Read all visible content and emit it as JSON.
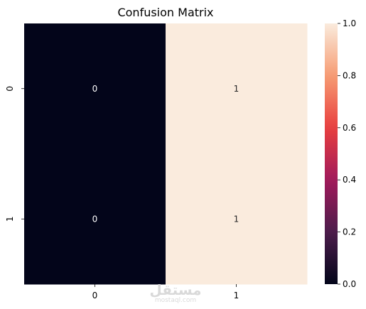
{
  "chart_data": {
    "type": "heatmap",
    "title": "Confusion Matrix",
    "xlabel": "",
    "ylabel": "",
    "x_categories": [
      "0",
      "1"
    ],
    "y_categories": [
      "0",
      "1"
    ],
    "values": [
      [
        0,
        1
      ],
      [
        0,
        1
      ]
    ],
    "annotations": [
      [
        "0",
        "1"
      ],
      [
        "0",
        "1"
      ]
    ],
    "vmin": 0,
    "vmax": 1,
    "colorbar_ticks": [
      "0.0",
      "0.2",
      "0.4",
      "0.6",
      "0.8",
      "1.0"
    ],
    "colormap": "rocket",
    "colormap_stops": [
      "#03051a",
      "#4c1d4b",
      "#a11a5b",
      "#e83f3f",
      "#f69c73",
      "#faebdd"
    ],
    "annotation_colors": {
      "dark_cell": "#ffffff",
      "light_cell": "#262626"
    }
  },
  "watermark": {
    "text": "مستقل",
    "subtext": "mostaql.com"
  }
}
